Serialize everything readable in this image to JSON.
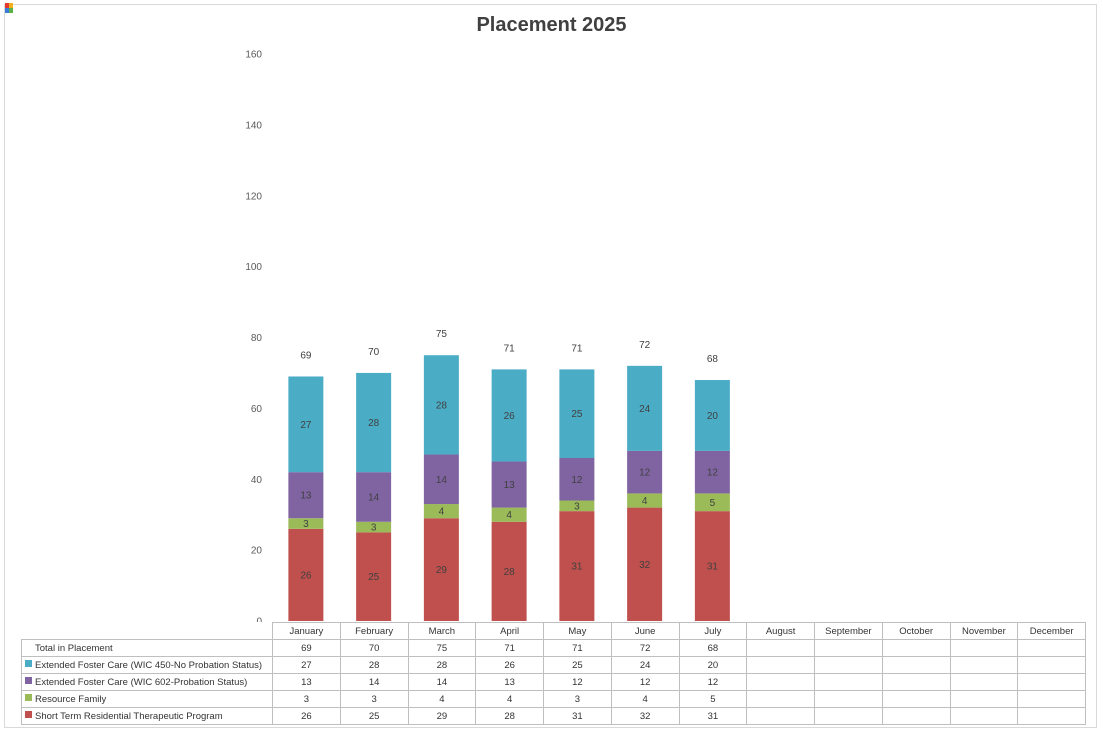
{
  "chart_data": {
    "type": "bar",
    "stacked": true,
    "title": "Placement 2025",
    "xlabel": "",
    "ylabel": "",
    "ylim": [
      0,
      160
    ],
    "yticks": [
      0,
      20,
      40,
      60,
      80,
      100,
      120,
      140,
      160
    ],
    "grid": false,
    "legend": "data table below chart",
    "categories": [
      "January",
      "February",
      "March",
      "April",
      "May",
      "June",
      "July",
      "August",
      "September",
      "October",
      "November",
      "December"
    ],
    "totals_name": "Total in Placement",
    "totals": [
      69,
      70,
      75,
      71,
      71,
      72,
      68,
      null,
      null,
      null,
      null,
      null
    ],
    "series": [
      {
        "name": "Short Term Residential Therapeutic Program",
        "color": "#c0504d",
        "values": [
          26,
          25,
          29,
          28,
          31,
          32,
          31,
          null,
          null,
          null,
          null,
          null
        ]
      },
      {
        "name": "Resource Family",
        "color": "#9bbb59",
        "values": [
          3,
          3,
          4,
          4,
          3,
          4,
          5,
          null,
          null,
          null,
          null,
          null
        ]
      },
      {
        "name": "Extended Foster Care (WIC 602-Probation Status)",
        "color": "#8064a2",
        "values": [
          13,
          14,
          14,
          13,
          12,
          12,
          12,
          null,
          null,
          null,
          null,
          null
        ]
      },
      {
        "name": "Extended Foster Care (WIC 450-No Probation Status)",
        "color": "#4bacc6",
        "values": [
          27,
          28,
          28,
          26,
          25,
          24,
          20,
          null,
          null,
          null,
          null,
          null
        ]
      }
    ]
  }
}
